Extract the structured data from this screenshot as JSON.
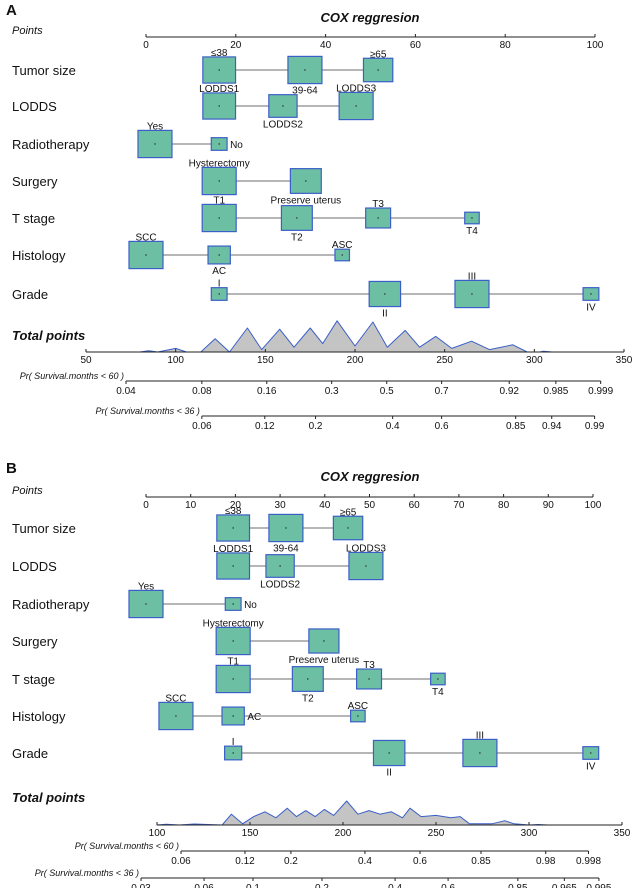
{
  "chart_data": [
    {
      "type": "nomogram",
      "panel_label": "A",
      "title": "COX reggresion",
      "points_label": "Points",
      "points_ticks": [
        0,
        20,
        40,
        60,
        80,
        100
      ],
      "points_range": [
        0,
        100
      ],
      "variables": [
        {
          "name": "Tumor size",
          "levels": [
            {
              "label": "≤38",
              "points": 16.3,
              "size": 0.95,
              "pos": "above"
            },
            {
              "label": "39-64",
              "points": 35.4,
              "size": 1.0,
              "pos": "below"
            },
            {
              "label": "≥65",
              "points": 51.7,
              "size": 0.82,
              "pos": "above"
            }
          ]
        },
        {
          "name": "LODDS",
          "levels": [
            {
              "label": "LODDS1",
              "points": 16.3,
              "size": 0.95,
              "pos": "above"
            },
            {
              "label": "LODDS2",
              "points": 30.5,
              "size": 0.78,
              "pos": "below"
            },
            {
              "label": "LODDS3",
              "points": 46.8,
              "size": 1.0,
              "pos": "above"
            }
          ]
        },
        {
          "name": "Radiotherapy",
          "levels": [
            {
              "label": "Yes",
              "points": 2.0,
              "size": 1.0,
              "pos": "above"
            },
            {
              "label": "No",
              "points": 16.3,
              "size": 0.3,
              "pos": "below"
            }
          ]
        },
        {
          "name": "Surgery",
          "levels": [
            {
              "label": "Hysterectomy",
              "points": 16.3,
              "size": 1.0,
              "pos": "above"
            },
            {
              "label": "Preserve uterus",
              "points": 35.6,
              "size": 0.88,
              "pos": "below"
            }
          ]
        },
        {
          "name": "T stage",
          "levels": [
            {
              "label": "T1",
              "points": 16.3,
              "size": 1.0,
              "pos": "above"
            },
            {
              "label": "T2",
              "points": 33.6,
              "size": 0.88,
              "pos": "below"
            },
            {
              "label": "T3",
              "points": 51.7,
              "size": 0.65,
              "pos": "above"
            },
            {
              "label": "T4",
              "points": 72.6,
              "size": 0.25,
              "pos": "below"
            }
          ]
        },
        {
          "name": "Histology",
          "levels": [
            {
              "label": "SCC",
              "points": 0.0,
              "size": 1.0,
              "pos": "above"
            },
            {
              "label": "AC",
              "points": 16.3,
              "size": 0.55,
              "pos": "below"
            },
            {
              "label": "ASC",
              "points": 43.7,
              "size": 0.25,
              "pos": "above"
            }
          ]
        },
        {
          "name": "Grade",
          "levels": [
            {
              "label": "I",
              "points": 16.3,
              "size": 0.3,
              "pos": "above"
            },
            {
              "label": "II",
              "points": 53.2,
              "size": 0.9,
              "pos": "below"
            },
            {
              "label": "III",
              "points": 72.6,
              "size": 1.0,
              "pos": "above"
            },
            {
              "label": "IV",
              "points": 99.1,
              "size": 0.3,
              "pos": "below"
            }
          ]
        }
      ],
      "total_points_label": "Total points",
      "total_points_ticks": [
        50,
        100,
        150,
        200,
        250,
        300,
        350
      ],
      "total_points_range": [
        50,
        350
      ],
      "density": [
        [
          80,
          0
        ],
        [
          85,
          0.05
        ],
        [
          90,
          0
        ],
        [
          100,
          0.15
        ],
        [
          106,
          0
        ],
        [
          114,
          0
        ],
        [
          122,
          0.55
        ],
        [
          130,
          0
        ],
        [
          140,
          1.0
        ],
        [
          148,
          0.1
        ],
        [
          158,
          0.95
        ],
        [
          166,
          0.2
        ],
        [
          175,
          1.0
        ],
        [
          182,
          0.35
        ],
        [
          190,
          1.3
        ],
        [
          200,
          0.25
        ],
        [
          210,
          1.25
        ],
        [
          218,
          0.2
        ],
        [
          228,
          0.9
        ],
        [
          236,
          0.2
        ],
        [
          245,
          0.65
        ],
        [
          254,
          0.15
        ],
        [
          265,
          0.45
        ],
        [
          275,
          0.1
        ],
        [
          288,
          0.3
        ],
        [
          296,
          0
        ],
        [
          303,
          0
        ],
        [
          305,
          0.03
        ],
        [
          310,
          0
        ]
      ],
      "probability_axes": [
        {
          "label": "Pr( Survival.months < 60 )",
          "ticks": [
            {
              "label": "0.04",
              "total": 72.3
            },
            {
              "label": "0.08",
              "total": 114.6
            },
            {
              "label": "0.16",
              "total": 150.8
            },
            {
              "label": "0.3",
              "total": 187
            },
            {
              "label": "0.5",
              "total": 217.7
            },
            {
              "label": "0.7",
              "total": 248.3
            },
            {
              "label": "0.92",
              "total": 286
            },
            {
              "label": "0.985",
              "total": 312
            },
            {
              "label": "0.999",
              "total": 337
            }
          ]
        },
        {
          "label": "Pr( Survival.months < 36 )",
          "ticks": [
            {
              "label": "0.06",
              "total": 114.6
            },
            {
              "label": "0.12",
              "total": 149.7
            },
            {
              "label": "0.2",
              "total": 178
            },
            {
              "label": "0.4",
              "total": 221
            },
            {
              "label": "0.6",
              "total": 248.3
            },
            {
              "label": "0.85",
              "total": 289.6
            },
            {
              "label": "0.94",
              "total": 309.7
            },
            {
              "label": "0.99",
              "total": 333.6
            }
          ]
        }
      ]
    },
    {
      "type": "nomogram",
      "panel_label": "B",
      "title": "COX reggresion",
      "points_label": "Points",
      "points_ticks": [
        0,
        10,
        20,
        30,
        40,
        50,
        60,
        70,
        80,
        90,
        100
      ],
      "points_range": [
        0,
        100
      ],
      "variables": [
        {
          "name": "Tumor size",
          "levels": [
            {
              "label": "≤38",
              "points": 19.5,
              "size": 0.95,
              "pos": "above"
            },
            {
              "label": "39-64",
              "points": 31.3,
              "size": 1.0,
              "pos": "below"
            },
            {
              "label": "≥65",
              "points": 45.2,
              "size": 0.82,
              "pos": "above"
            }
          ]
        },
        {
          "name": "LODDS",
          "levels": [
            {
              "label": "LODDS1",
              "points": 19.5,
              "size": 0.95,
              "pos": "above"
            },
            {
              "label": "LODDS2",
              "points": 30.0,
              "size": 0.78,
              "pos": "below"
            },
            {
              "label": "LODDS3",
              "points": 49.2,
              "size": 1.0,
              "pos": "above"
            }
          ]
        },
        {
          "name": "Radiotherapy",
          "levels": [
            {
              "label": "Yes",
              "points": 0.0,
              "size": 1.0,
              "pos": "above"
            },
            {
              "label": "No",
              "points": 19.5,
              "size": 0.3,
              "pos": "below"
            }
          ]
        },
        {
          "name": "Surgery",
          "levels": [
            {
              "label": "Hysterectomy",
              "points": 19.5,
              "size": 1.0,
              "pos": "above"
            },
            {
              "label": "Preserve uterus",
              "points": 39.8,
              "size": 0.85,
              "pos": "below"
            }
          ]
        },
        {
          "name": "T stage",
          "levels": [
            {
              "label": "T1",
              "points": 19.5,
              "size": 1.0,
              "pos": "above"
            },
            {
              "label": "T2",
              "points": 36.2,
              "size": 0.88,
              "pos": "below"
            },
            {
              "label": "T3",
              "points": 49.9,
              "size": 0.65,
              "pos": "above"
            },
            {
              "label": "T4",
              "points": 65.3,
              "size": 0.25,
              "pos": "below"
            }
          ]
        },
        {
          "name": "Histology",
          "levels": [
            {
              "label": "SCC",
              "points": 6.7,
              "size": 1.0,
              "pos": "above"
            },
            {
              "label": "AC",
              "points": 19.5,
              "size": 0.55,
              "pos": "below"
            },
            {
              "label": "ASC",
              "points": 47.4,
              "size": 0.25,
              "pos": "above"
            }
          ]
        },
        {
          "name": "Grade",
          "levels": [
            {
              "label": "I",
              "points": 19.5,
              "size": 0.35,
              "pos": "above"
            },
            {
              "label": "II",
              "points": 54.4,
              "size": 0.9,
              "pos": "below"
            },
            {
              "label": "III",
              "points": 74.7,
              "size": 1.0,
              "pos": "above"
            },
            {
              "label": "IV",
              "points": 99.5,
              "size": 0.3,
              "pos": "below"
            }
          ]
        }
      ],
      "total_points_label": "Total points",
      "total_points_ticks": [
        100,
        150,
        200,
        250,
        300,
        350
      ],
      "total_points_range": [
        100,
        350
      ],
      "density": [
        [
          100,
          0
        ],
        [
          105,
          0.03
        ],
        [
          112,
          0
        ],
        [
          120,
          0.04
        ],
        [
          135,
          0
        ],
        [
          140,
          0.45
        ],
        [
          146,
          0.05
        ],
        [
          152,
          0.35
        ],
        [
          158,
          0.55
        ],
        [
          164,
          0.3
        ],
        [
          170,
          0.7
        ],
        [
          175,
          0.35
        ],
        [
          180,
          0.6
        ],
        [
          185,
          0.35
        ],
        [
          190,
          0.65
        ],
        [
          195,
          0.4
        ],
        [
          202,
          1.0
        ],
        [
          208,
          0.45
        ],
        [
          214,
          0.6
        ],
        [
          220,
          0.45
        ],
        [
          226,
          0.55
        ],
        [
          232,
          0.3
        ],
        [
          236,
          0.7
        ],
        [
          242,
          0.35
        ],
        [
          250,
          0.4
        ],
        [
          258,
          0.3
        ],
        [
          263,
          0.35
        ],
        [
          268,
          0.05
        ],
        [
          280,
          0.05
        ],
        [
          287,
          0.18
        ],
        [
          292,
          0.05
        ],
        [
          300,
          0
        ],
        [
          305,
          0.02
        ],
        [
          310,
          0
        ]
      ],
      "probability_axes": [
        {
          "label": "Pr( Survival.months < 60 )",
          "ticks": [
            {
              "label": "0.06",
              "total": 112.9
            },
            {
              "label": "0.12",
              "total": 147.3
            },
            {
              "label": "0.2",
              "total": 172
            },
            {
              "label": "0.4",
              "total": 211.8
            },
            {
              "label": "0.6",
              "total": 241.4
            },
            {
              "label": "0.85",
              "total": 274.2
            },
            {
              "label": "0.98",
              "total": 309
            },
            {
              "label": "0.998",
              "total": 332
            }
          ]
        },
        {
          "label": "Pr( Survival.months < 36 )",
          "ticks": [
            {
              "label": "0.03",
              "total": 91.4
            },
            {
              "label": "0.06",
              "total": 125.3
            },
            {
              "label": "0.1",
              "total": 151.6
            },
            {
              "label": "0.2",
              "total": 188.7
            },
            {
              "label": "0.4",
              "total": 228
            },
            {
              "label": "0.6",
              "total": 256.5
            },
            {
              "label": "0.85",
              "total": 294
            },
            {
              "label": "0.965",
              "total": 319
            },
            {
              "label": "0.995",
              "total": 337.6
            }
          ]
        }
      ]
    }
  ],
  "colors": {
    "box_fill": "#6dbfa3",
    "box_stroke": "#3b5fc8",
    "density_fill": "#c4c4c4",
    "density_stroke": "#3b5fc8",
    "line": "#8a8a8a"
  }
}
